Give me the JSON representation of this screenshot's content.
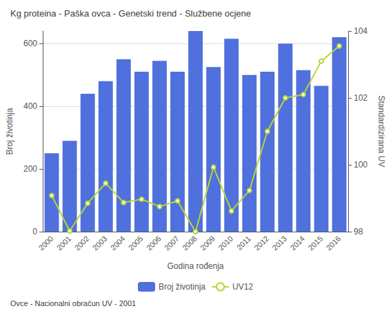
{
  "chart_data": {
    "type": "bar",
    "title": "Kg proteina - Paška ovca - Genetski trend - Službene ocjene",
    "xlabel": "Godina rođenja",
    "ylabel": "Broj životinja",
    "y2label": "Standardizirana UV",
    "annotations": [
      "Ovce - Nacionalni obračun UV - 2001"
    ],
    "categories": [
      "2000",
      "2001",
      "2002",
      "2003",
      "2004",
      "2005",
      "2006",
      "2007",
      "2008",
      "2009",
      "2010",
      "2011",
      "2012",
      "2013",
      "2014",
      "2015",
      "2016"
    ],
    "series": [
      {
        "name": "Broj životinja",
        "type": "bar",
        "values": [
          250,
          290,
          440,
          480,
          550,
          510,
          545,
          510,
          640,
          525,
          615,
          500,
          510,
          600,
          515,
          465,
          620
        ]
      },
      {
        "name": "UV12",
        "type": "line",
        "axis": "y2",
        "values": [
          99.08,
          98.02,
          98.85,
          99.45,
          98.87,
          98.97,
          98.75,
          98.92,
          98.0,
          99.93,
          98.62,
          99.23,
          101.0,
          102.0,
          102.1,
          103.1,
          103.55
        ]
      }
    ],
    "ylim": [
      0,
      640
    ],
    "yticks": [
      0,
      200,
      400,
      600
    ],
    "y2lim": [
      98,
      104
    ],
    "y2ticks": [
      98,
      100,
      102,
      104
    ],
    "grid": true,
    "legend": "bottom"
  }
}
